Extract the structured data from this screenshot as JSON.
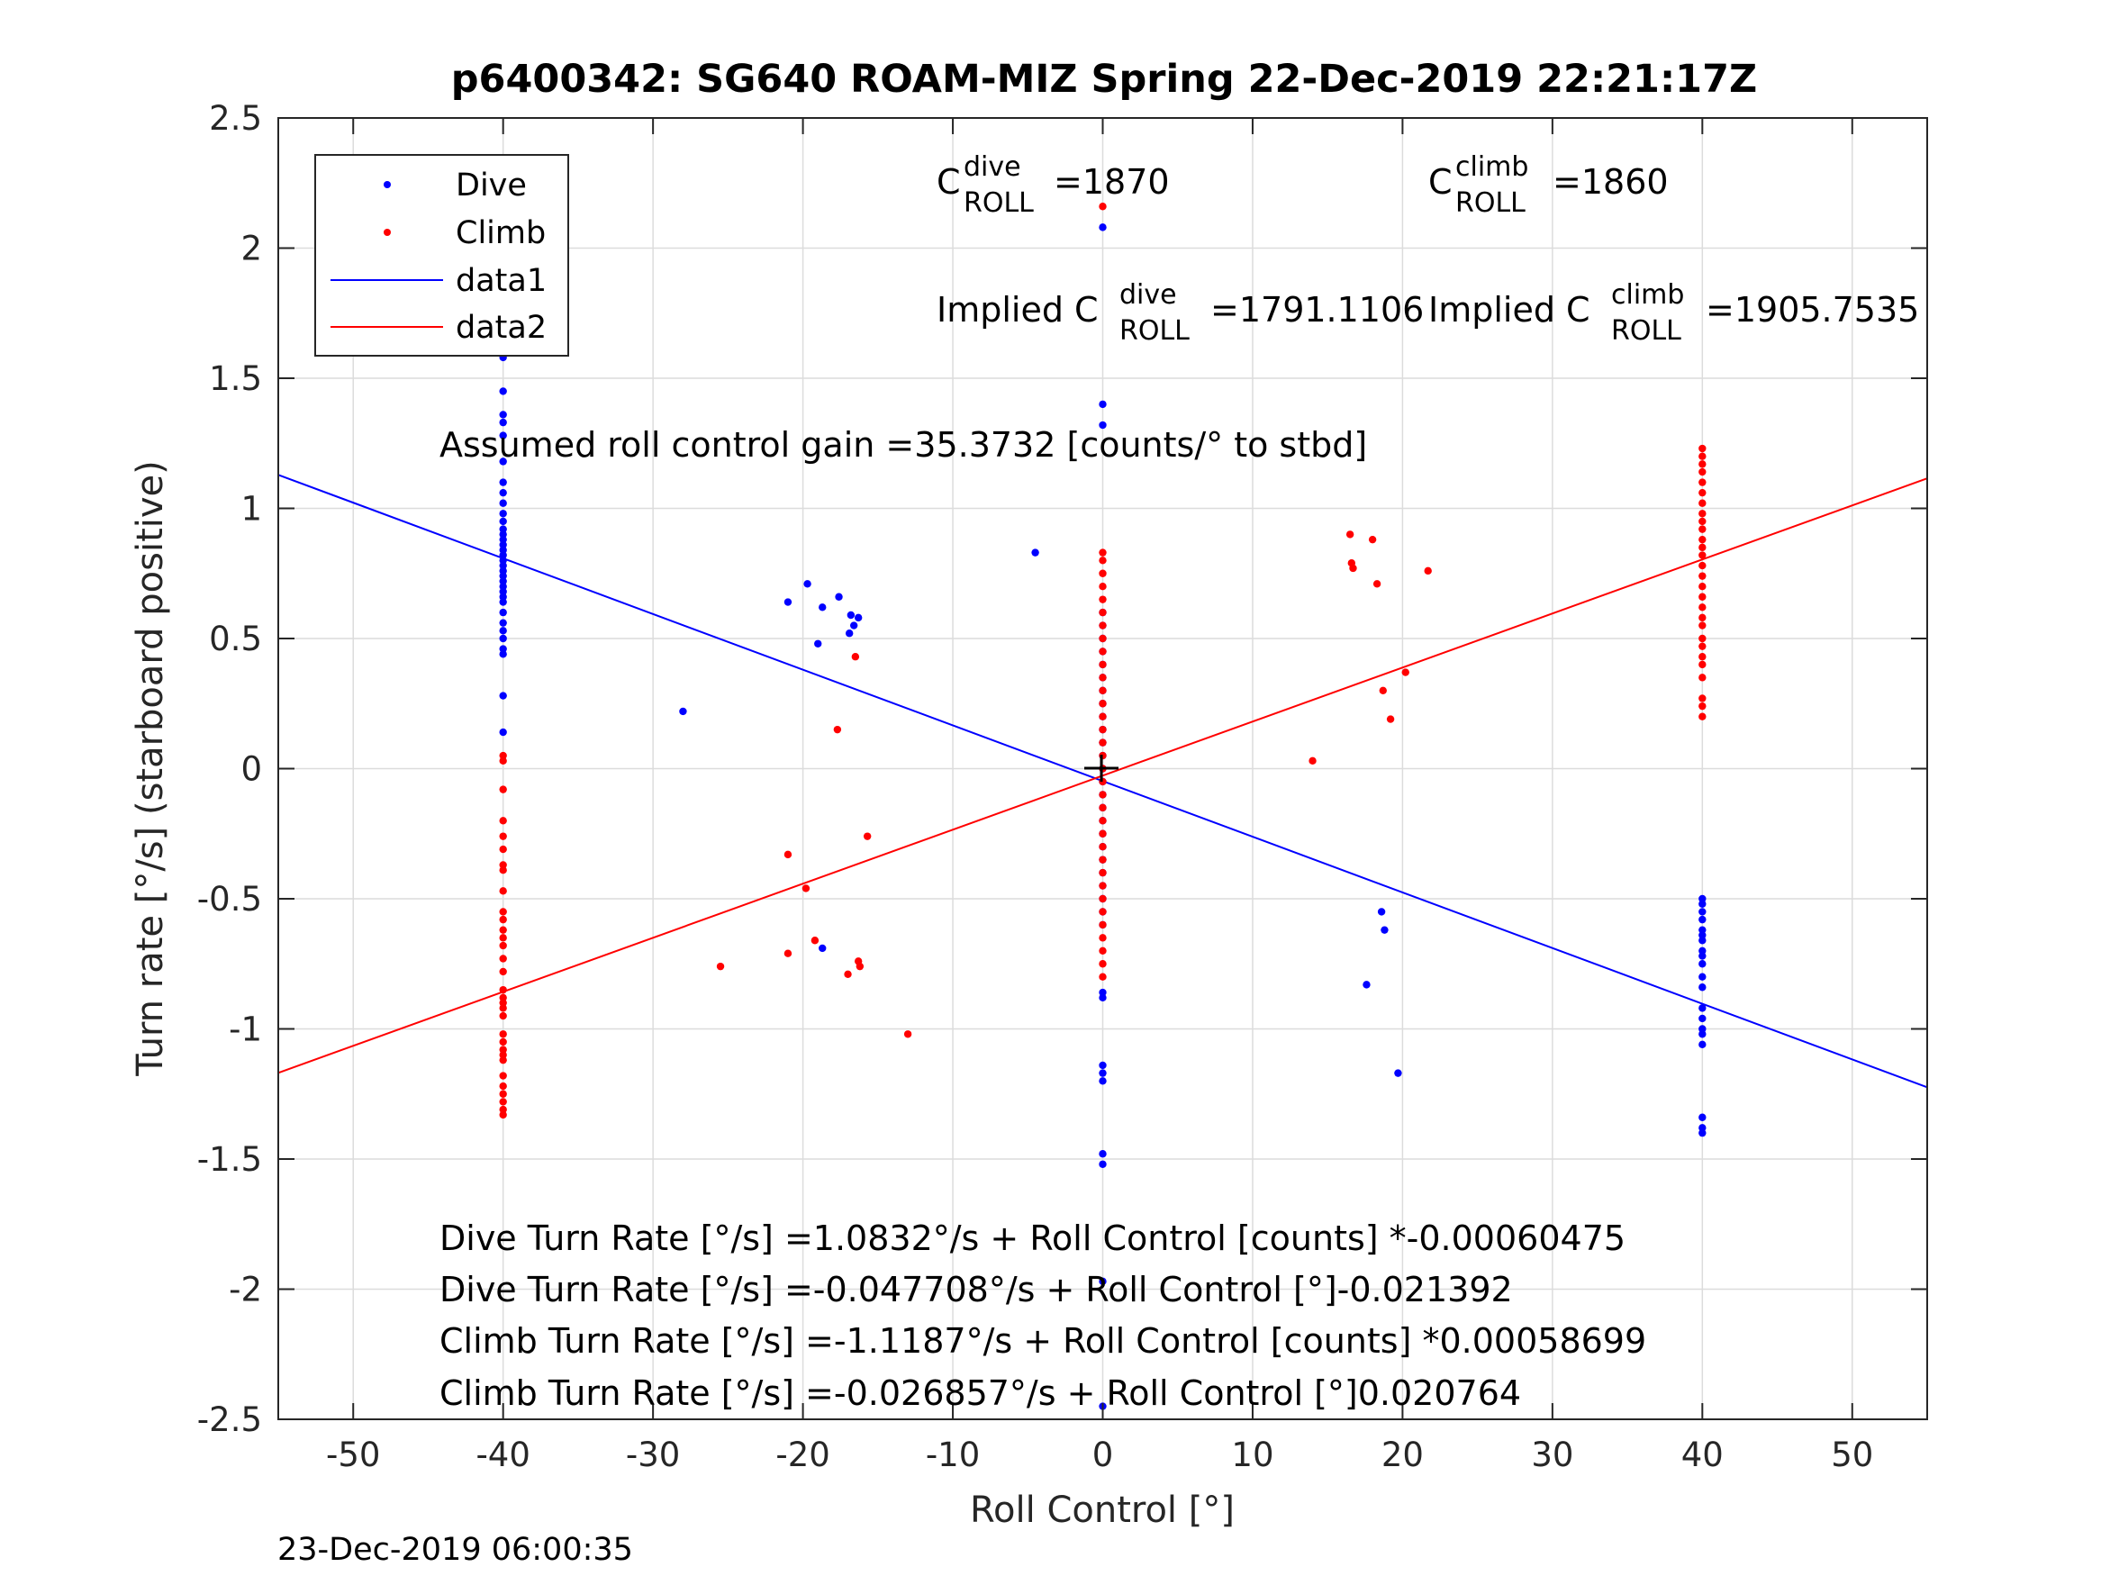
{
  "chart_data": {
    "type": "scatter",
    "title": "p6400342: SG640 ROAM-MIZ Spring 22-Dec-2019 22:21:17Z",
    "xlabel": "Roll Control [°]",
    "ylabel": "Turn rate [°/s] (starboard positive)",
    "xlim": [
      -55,
      55
    ],
    "ylim": [
      -2.5,
      2.5
    ],
    "xticks": [
      -50,
      -40,
      -30,
      -20,
      -10,
      0,
      10,
      20,
      30,
      40,
      50
    ],
    "xticklabels": [
      "-50",
      "-40",
      "-30",
      "-20",
      "-10",
      "0",
      "10",
      "20",
      "30",
      "40",
      "50"
    ],
    "yticks": [
      -2.5,
      -2,
      -1.5,
      -1,
      -0.5,
      0,
      0.5,
      1,
      1.5,
      2,
      2.5
    ],
    "yticklabels": [
      "-2.5",
      "-2",
      "-1.5",
      "-1",
      "-0.5",
      "0",
      "0.5",
      "1",
      "1.5",
      "2",
      "2.5"
    ],
    "grid": true,
    "legend_position": "top-left",
    "legend": [
      {
        "label": "Dive",
        "kind": "marker",
        "color": "#0000ff"
      },
      {
        "label": "Climb",
        "kind": "marker",
        "color": "#ff0000"
      },
      {
        "label": "data1",
        "kind": "line",
        "color": "#0000ff"
      },
      {
        "label": "data2",
        "kind": "line",
        "color": "#ff0000"
      }
    ],
    "annotations": {
      "c_dive_base": "C",
      "c_dive_sup": "dive",
      "c_dive_sub": "ROLL",
      "c_dive_val": "=1870",
      "c_climb_base": "C",
      "c_climb_sup": "climb",
      "c_climb_sub": "ROLL",
      "c_climb_val": "=1860",
      "implied_dive_base": "Implied C",
      "implied_dive_sup": "dive",
      "implied_dive_sub": "ROLL",
      "implied_dive_val": "=1791.1106",
      "implied_climb_base": "Implied C",
      "implied_climb_sup": "climb",
      "implied_climb_sub": "ROLL",
      "implied_climb_val": "=1905.7535",
      "gain": "Assumed roll control gain =35.3732 [counts/° to stbd]",
      "eq1": "Dive Turn Rate [°/s] =1.0832°/s + Roll Control [counts] *-0.00060475",
      "eq2": "Dive Turn Rate [°/s] =-0.047708°/s + Roll Control [°]-0.021392",
      "eq3": "Climb Turn Rate [°/s] =-1.1187°/s + Roll Control [counts] *0.00058699",
      "eq4": "Climb Turn Rate [°/s] =-0.026857°/s + Roll Control [°]0.020764"
    },
    "timestamp": "23-Dec-2019 06:00:35",
    "fit_lines": [
      {
        "name": "data1",
        "color": "#0000ff",
        "intercept": -0.047708,
        "slope": -0.021392
      },
      {
        "name": "data2",
        "color": "#ff0000",
        "intercept": -0.026857,
        "slope": 0.020764
      }
    ],
    "series": [
      {
        "name": "Dive",
        "color": "#0000ff",
        "points": [
          [
            -40,
            1.58
          ],
          [
            -40,
            1.45
          ],
          [
            -40,
            1.36
          ],
          [
            -40,
            1.33
          ],
          [
            -40,
            1.28
          ],
          [
            -40,
            1.18
          ],
          [
            -40,
            1.1
          ],
          [
            -40,
            1.06
          ],
          [
            -40,
            1.02
          ],
          [
            -40,
            0.98
          ],
          [
            -40,
            0.95
          ],
          [
            -40,
            0.92
          ],
          [
            -40,
            0.9
          ],
          [
            -40,
            0.88
          ],
          [
            -40,
            0.86
          ],
          [
            -40,
            0.84
          ],
          [
            -40,
            0.82
          ],
          [
            -40,
            0.8
          ],
          [
            -40,
            0.78
          ],
          [
            -40,
            0.76
          ],
          [
            -40,
            0.74
          ],
          [
            -40,
            0.72
          ],
          [
            -40,
            0.7
          ],
          [
            -40,
            0.68
          ],
          [
            -40,
            0.66
          ],
          [
            -40,
            0.64
          ],
          [
            -40,
            0.6
          ],
          [
            -40,
            0.56
          ],
          [
            -40,
            0.53
          ],
          [
            -40,
            0.5
          ],
          [
            -40,
            0.46
          ],
          [
            -40,
            0.44
          ],
          [
            -40,
            0.28
          ],
          [
            -40,
            0.14
          ],
          [
            -28,
            0.22
          ],
          [
            -21,
            0.64
          ],
          [
            -19.7,
            0.71
          ],
          [
            -19,
            0.48
          ],
          [
            -18.7,
            0.62
          ],
          [
            -17.6,
            0.66
          ],
          [
            -16.8,
            0.59
          ],
          [
            -16.6,
            0.55
          ],
          [
            -16.9,
            0.52
          ],
          [
            -16.3,
            0.58
          ],
          [
            -4.5,
            0.83
          ],
          [
            -18.7,
            -0.69
          ],
          [
            0,
            2.08
          ],
          [
            0,
            1.4
          ],
          [
            0,
            1.32
          ],
          [
            0,
            0.6
          ],
          [
            0,
            0.55
          ],
          [
            0,
            0.5
          ],
          [
            0,
            0.45
          ],
          [
            0,
            0.4
          ],
          [
            0,
            0.35
          ],
          [
            0,
            0.3
          ],
          [
            0,
            0.25
          ],
          [
            0,
            0.2
          ],
          [
            0,
            0.15
          ],
          [
            0,
            0.1
          ],
          [
            0,
            0.05
          ],
          [
            0,
            0.0
          ],
          [
            0,
            -0.05
          ],
          [
            0,
            -0.1
          ],
          [
            0,
            -0.15
          ],
          [
            0,
            -0.2
          ],
          [
            0,
            -0.25
          ],
          [
            0,
            -0.3
          ],
          [
            0,
            -0.35
          ],
          [
            0,
            -0.4
          ],
          [
            0,
            -0.45
          ],
          [
            0,
            -0.5
          ],
          [
            0,
            -0.55
          ],
          [
            0,
            -0.6
          ],
          [
            0,
            -0.86
          ],
          [
            0,
            -0.88
          ],
          [
            0,
            -1.14
          ],
          [
            0,
            -1.17
          ],
          [
            0,
            -1.2
          ],
          [
            0,
            -1.48
          ],
          [
            0,
            -1.52
          ],
          [
            0,
            -1.97
          ],
          [
            0,
            -2.45
          ],
          [
            17.6,
            -0.83
          ],
          [
            18.6,
            -0.55
          ],
          [
            18.8,
            -0.62
          ],
          [
            19.7,
            -1.17
          ],
          [
            40,
            -0.5
          ],
          [
            40,
            -0.52
          ],
          [
            40,
            -0.55
          ],
          [
            40,
            -0.58
          ],
          [
            40,
            -0.62
          ],
          [
            40,
            -0.64
          ],
          [
            40,
            -0.66
          ],
          [
            40,
            -0.7
          ],
          [
            40,
            -0.72
          ],
          [
            40,
            -0.75
          ],
          [
            40,
            -0.8
          ],
          [
            40,
            -0.84
          ],
          [
            40,
            -0.92
          ],
          [
            40,
            -0.96
          ],
          [
            40,
            -1.0
          ],
          [
            40,
            -1.02
          ],
          [
            40,
            -1.06
          ],
          [
            40,
            -1.34
          ],
          [
            40,
            -1.38
          ],
          [
            40,
            -1.4
          ]
        ]
      },
      {
        "name": "Climb",
        "color": "#ff0000",
        "points": [
          [
            -40,
            0.05
          ],
          [
            -40,
            0.03
          ],
          [
            -40,
            -0.08
          ],
          [
            -40,
            -0.2
          ],
          [
            -40,
            -0.26
          ],
          [
            -40,
            -0.31
          ],
          [
            -40,
            -0.37
          ],
          [
            -40,
            -0.39
          ],
          [
            -40,
            -0.47
          ],
          [
            -40,
            -0.55
          ],
          [
            -40,
            -0.58
          ],
          [
            -40,
            -0.62
          ],
          [
            -40,
            -0.65
          ],
          [
            -40,
            -0.68
          ],
          [
            -40,
            -0.73
          ],
          [
            -40,
            -0.78
          ],
          [
            -40,
            -0.85
          ],
          [
            -40,
            -0.88
          ],
          [
            -40,
            -0.9
          ],
          [
            -40,
            -0.92
          ],
          [
            -40,
            -0.95
          ],
          [
            -40,
            -1.02
          ],
          [
            -40,
            -1.05
          ],
          [
            -40,
            -1.08
          ],
          [
            -40,
            -1.1
          ],
          [
            -40,
            -1.12
          ],
          [
            -40,
            -1.18
          ],
          [
            -40,
            -1.22
          ],
          [
            -40,
            -1.25
          ],
          [
            -40,
            -1.28
          ],
          [
            -40,
            -1.31
          ],
          [
            -40,
            -1.33
          ],
          [
            -25.5,
            -0.76
          ],
          [
            -21,
            -0.33
          ],
          [
            -21,
            -0.71
          ],
          [
            -19.8,
            -0.46
          ],
          [
            -19.2,
            -0.66
          ],
          [
            -17.7,
            0.15
          ],
          [
            -17,
            -0.79
          ],
          [
            -16.5,
            0.43
          ],
          [
            -16.3,
            -0.74
          ],
          [
            -16.2,
            -0.76
          ],
          [
            -15.7,
            -0.26
          ],
          [
            -13,
            -1.02
          ],
          [
            0,
            2.16
          ],
          [
            0,
            0.83
          ],
          [
            0,
            0.8
          ],
          [
            0,
            0.75
          ],
          [
            0,
            0.7
          ],
          [
            0,
            0.65
          ],
          [
            0,
            0.6
          ],
          [
            0,
            0.55
          ],
          [
            0,
            0.5
          ],
          [
            0,
            0.45
          ],
          [
            0,
            0.4
          ],
          [
            0,
            0.35
          ],
          [
            0,
            0.3
          ],
          [
            0,
            0.25
          ],
          [
            0,
            0.2
          ],
          [
            0,
            0.15
          ],
          [
            0,
            0.1
          ],
          [
            0,
            0.05
          ],
          [
            0,
            0.0
          ],
          [
            0,
            -0.05
          ],
          [
            0,
            -0.1
          ],
          [
            0,
            -0.15
          ],
          [
            0,
            -0.2
          ],
          [
            0,
            -0.25
          ],
          [
            0,
            -0.3
          ],
          [
            0,
            -0.35
          ],
          [
            0,
            -0.4
          ],
          [
            0,
            -0.45
          ],
          [
            0,
            -0.5
          ],
          [
            0,
            -0.55
          ],
          [
            0,
            -0.6
          ],
          [
            0,
            -0.65
          ],
          [
            0,
            -0.7
          ],
          [
            0,
            -0.75
          ],
          [
            0,
            -0.8
          ],
          [
            14,
            0.03
          ],
          [
            16.5,
            0.9
          ],
          [
            16.6,
            0.79
          ],
          [
            16.7,
            0.77
          ],
          [
            18,
            0.88
          ],
          [
            18.3,
            0.71
          ],
          [
            18.7,
            0.3
          ],
          [
            19.2,
            0.19
          ],
          [
            20.2,
            0.37
          ],
          [
            21.7,
            0.76
          ],
          [
            40,
            1.23
          ],
          [
            40,
            1.2
          ],
          [
            40,
            1.17
          ],
          [
            40,
            1.14
          ],
          [
            40,
            1.1
          ],
          [
            40,
            1.06
          ],
          [
            40,
            1.02
          ],
          [
            40,
            0.98
          ],
          [
            40,
            0.95
          ],
          [
            40,
            0.92
          ],
          [
            40,
            0.88
          ],
          [
            40,
            0.85
          ],
          [
            40,
            0.82
          ],
          [
            40,
            0.78
          ],
          [
            40,
            0.74
          ],
          [
            40,
            0.7
          ],
          [
            40,
            0.66
          ],
          [
            40,
            0.62
          ],
          [
            40,
            0.58
          ],
          [
            40,
            0.55
          ],
          [
            40,
            0.5
          ],
          [
            40,
            0.47
          ],
          [
            40,
            0.43
          ],
          [
            40,
            0.4
          ],
          [
            40,
            0.35
          ],
          [
            40,
            0.27
          ],
          [
            40,
            0.24
          ],
          [
            40,
            0.2
          ]
        ]
      }
    ]
  }
}
